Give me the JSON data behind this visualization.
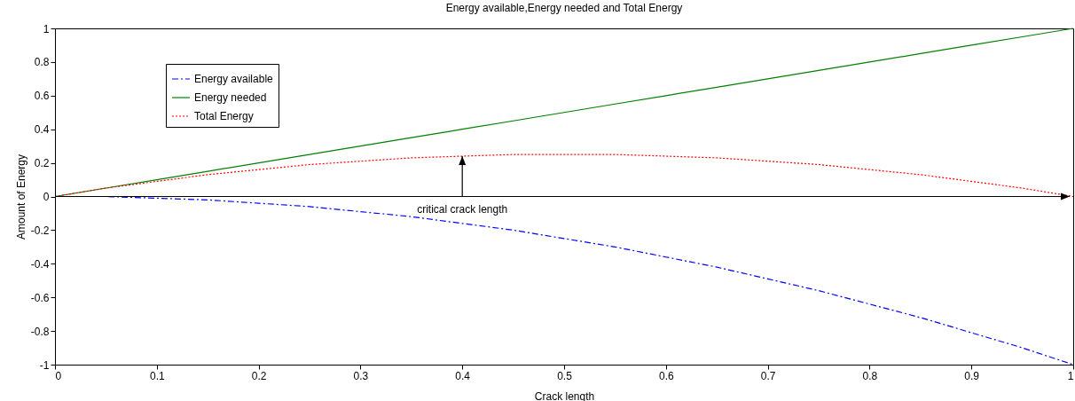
{
  "chart_data": {
    "type": "line",
    "title": "Energy available,Energy needed and Total Energy",
    "xlabel": "Crack length",
    "ylabel": "Amount of Energy",
    "x": [
      0,
      0.05,
      0.1,
      0.15,
      0.2,
      0.25,
      0.3,
      0.35,
      0.4,
      0.45,
      0.5,
      0.55,
      0.6,
      0.65,
      0.7,
      0.75,
      0.8,
      0.85,
      0.9,
      0.95,
      1
    ],
    "series": [
      {
        "name": "Energy available",
        "color": "#0000ff",
        "line_style": "dashed",
        "values": [
          0,
          0,
          -0.01,
          -0.02,
          -0.04,
          -0.06,
          -0.09,
          -0.12,
          -0.16,
          -0.2,
          -0.25,
          -0.3,
          -0.36,
          -0.42,
          -0.49,
          -0.56,
          -0.64,
          -0.72,
          -0.81,
          -0.9,
          -1
        ]
      },
      {
        "name": "Energy needed",
        "color": "#008000",
        "line_style": "solid",
        "values": [
          0,
          0.05,
          0.1,
          0.15,
          0.2,
          0.25,
          0.3,
          0.35,
          0.4,
          0.45,
          0.5,
          0.55,
          0.6,
          0.65,
          0.7,
          0.75,
          0.8,
          0.85,
          0.9,
          0.95,
          1
        ]
      },
      {
        "name": "Total Energy",
        "color": "#ff0000",
        "line_style": "dotted",
        "values": [
          0,
          0.05,
          0.09,
          0.13,
          0.16,
          0.19,
          0.21,
          0.23,
          0.24,
          0.25,
          0.25,
          0.25,
          0.24,
          0.23,
          0.21,
          0.19,
          0.16,
          0.13,
          0.09,
          0.05,
          0
        ]
      }
    ],
    "xlim": [
      0,
      1
    ],
    "ylim": [
      -1,
      1
    ],
    "xticks": [
      0,
      0.1,
      0.2,
      0.3,
      0.4,
      0.5,
      0.6,
      0.7,
      0.8,
      0.9,
      1
    ],
    "yticks": [
      -1,
      -0.8,
      -0.6,
      -0.4,
      -0.2,
      0,
      0.2,
      0.4,
      0.6,
      0.8,
      1
    ],
    "ref_lines": [
      {
        "axis": "y",
        "value": 0,
        "color": "#000000"
      }
    ],
    "annotations": [
      {
        "text": "critical crack length",
        "x": 0.4,
        "y": 0.24
      }
    ],
    "legend": "top left",
    "grid": false,
    "marker": "none"
  }
}
